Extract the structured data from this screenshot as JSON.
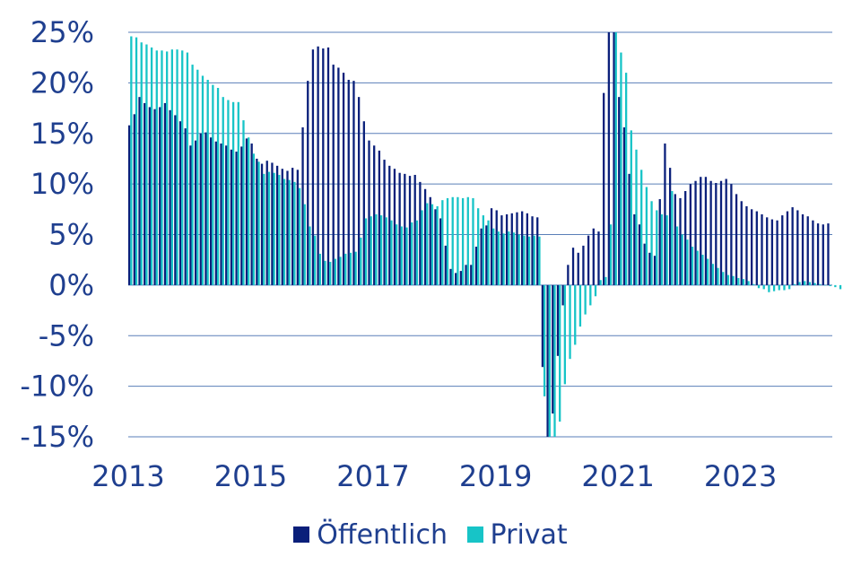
{
  "chart_data": {
    "type": "bar",
    "title": "",
    "xlabel": "",
    "ylabel": "",
    "ylim": [
      -15,
      25
    ],
    "y_ticks": [
      {
        "value": 25,
        "label": "25%"
      },
      {
        "value": 20,
        "label": "20%"
      },
      {
        "value": 15,
        "label": "15%"
      },
      {
        "value": 10,
        "label": "10%"
      },
      {
        "value": 5,
        "label": "5%"
      },
      {
        "value": 0,
        "label": "0%"
      },
      {
        "value": -5,
        "label": "-5%"
      },
      {
        "value": -10,
        "label": "-10%"
      },
      {
        "value": -15,
        "label": "-15%"
      }
    ],
    "x_ticks": [
      "2013",
      "2015",
      "2017",
      "2019",
      "2021",
      "2023"
    ],
    "x_start": "2013-01",
    "grid": true,
    "legend_position": "bottom",
    "series": [
      {
        "name": "Öffentlich",
        "color": "#0a1f7a",
        "values": [
          15.8,
          16.9,
          18.6,
          18.0,
          17.6,
          17.4,
          17.6,
          18.0,
          17.3,
          16.8,
          16.2,
          15.5,
          13.8,
          14.3,
          15.0,
          15.1,
          14.6,
          14.2,
          14.0,
          13.8,
          13.4,
          13.2,
          13.7,
          14.5,
          14.0,
          12.5,
          12.0,
          12.3,
          12.1,
          11.8,
          11.5,
          11.3,
          11.6,
          11.4,
          15.6,
          20.2,
          23.3,
          23.6,
          23.4,
          23.5,
          21.8,
          21.5,
          21.0,
          20.3,
          20.2,
          18.6,
          16.2,
          14.3,
          13.8,
          13.3,
          12.4,
          11.8,
          11.5,
          11.1,
          11.0,
          10.8,
          10.9,
          10.2,
          9.5,
          8.7,
          7.5,
          6.6,
          3.9,
          1.6,
          1.2,
          1.4,
          2.0,
          2.0,
          3.8,
          5.6,
          5.9,
          7.6,
          7.4,
          6.9,
          7.0,
          7.1,
          7.2,
          7.3,
          7.1,
          6.8,
          6.7,
          -8.1,
          -15.0,
          -12.7,
          -7.0,
          -2.0,
          2.0,
          3.7,
          3.2,
          3.9,
          4.9,
          5.6,
          5.3,
          19.0,
          25.0,
          25.0,
          18.6,
          15.6,
          11.0,
          7.0,
          6.0,
          4.1,
          3.2,
          2.9,
          8.5,
          14.0,
          11.6,
          9.0,
          8.6,
          9.3,
          10.0,
          10.3,
          10.7,
          10.7,
          10.3,
          10.1,
          10.3,
          10.5,
          10.0,
          9.0,
          8.3,
          7.8,
          7.5,
          7.3,
          7.0,
          6.7,
          6.5,
          6.4,
          6.9,
          7.3,
          7.7,
          7.4,
          7.0,
          6.8,
          6.4,
          6.1,
          6.0,
          6.1
        ]
      },
      {
        "name": "Privat",
        "color": "#17c4c7",
        "values": [
          24.6,
          24.5,
          24.0,
          23.8,
          23.5,
          23.2,
          23.2,
          23.1,
          23.3,
          23.3,
          23.2,
          23.0,
          21.8,
          21.3,
          20.7,
          20.3,
          19.8,
          19.5,
          18.6,
          18.3,
          18.1,
          18.1,
          16.3,
          14.6,
          13.0,
          12.2,
          11.0,
          11.2,
          11.1,
          10.9,
          10.5,
          10.4,
          10.2,
          9.6,
          8.0,
          5.8,
          4.9,
          3.1,
          2.4,
          2.3,
          2.6,
          2.8,
          3.1,
          3.2,
          3.3,
          4.7,
          6.6,
          6.8,
          7.0,
          6.9,
          6.7,
          6.4,
          6.0,
          5.8,
          5.7,
          6.2,
          6.4,
          7.4,
          8.1,
          8.0,
          7.8,
          8.4,
          8.6,
          8.7,
          8.7,
          8.6,
          8.7,
          8.6,
          7.6,
          6.9,
          6.4,
          5.6,
          5.3,
          5.1,
          5.3,
          5.2,
          5.0,
          4.9,
          4.8,
          4.9,
          4.8,
          -11.0,
          -15.0,
          -15.0,
          -13.5,
          -9.8,
          -7.3,
          -5.9,
          -4.1,
          -2.9,
          -2.0,
          -1.1,
          0.5,
          0.8,
          6.0,
          25.0,
          23.0,
          21.0,
          15.3,
          13.4,
          11.4,
          9.7,
          8.3,
          7.4,
          7.0,
          6.9,
          9.3,
          5.8,
          5.0,
          4.5,
          3.8,
          3.4,
          3.0,
          2.6,
          2.1,
          1.7,
          1.3,
          1.0,
          0.9,
          0.7,
          0.6,
          0.4,
          0.1,
          -0.3,
          -0.4,
          -0.7,
          -0.6,
          -0.5,
          -0.5,
          -0.4,
          0.1,
          0.3,
          0.4,
          0.3,
          0.2,
          0.1,
          0.0,
          -0.1,
          -0.2,
          -0.4
        ]
      }
    ]
  }
}
